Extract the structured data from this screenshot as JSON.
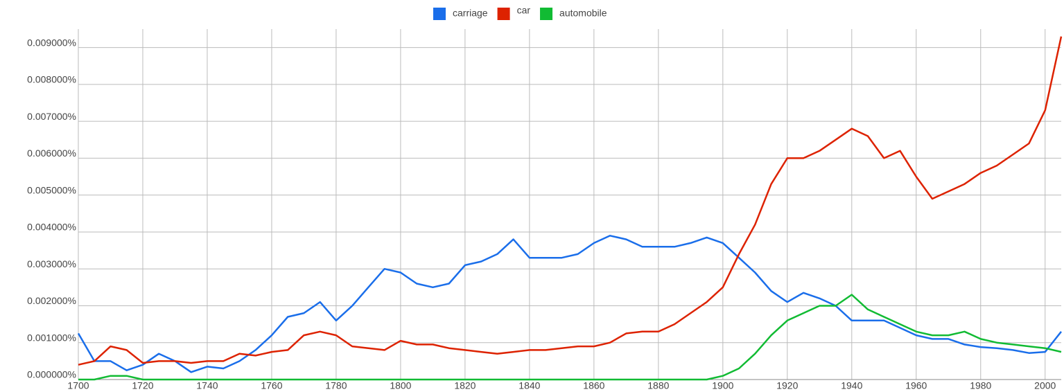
{
  "chart_data": {
    "type": "line",
    "x": [
      1700,
      1705,
      1710,
      1715,
      1720,
      1725,
      1730,
      1735,
      1740,
      1745,
      1750,
      1755,
      1760,
      1765,
      1770,
      1775,
      1780,
      1785,
      1790,
      1795,
      1800,
      1805,
      1810,
      1815,
      1820,
      1825,
      1830,
      1835,
      1840,
      1845,
      1850,
      1855,
      1860,
      1865,
      1870,
      1875,
      1880,
      1885,
      1890,
      1895,
      1900,
      1905,
      1910,
      1915,
      1920,
      1925,
      1930,
      1935,
      1940,
      1945,
      1950,
      1955,
      1960,
      1965,
      1970,
      1975,
      1980,
      1985,
      1990,
      1995,
      2000,
      2005
    ],
    "series": [
      {
        "name": "carriage",
        "color": "#1a6eea",
        "values": [
          0.00125,
          0.0005,
          0.0005,
          0.00025,
          0.0004,
          0.0007,
          0.0005,
          0.0002,
          0.00035,
          0.0003,
          0.0005,
          0.0008,
          0.0012,
          0.0017,
          0.0018,
          0.0021,
          0.0016,
          0.002,
          0.0025,
          0.003,
          0.0029,
          0.0026,
          0.0025,
          0.0026,
          0.0031,
          0.0032,
          0.0034,
          0.0038,
          0.0033,
          0.0033,
          0.0033,
          0.0034,
          0.0037,
          0.0039,
          0.0038,
          0.0036,
          0.0036,
          0.0036,
          0.0037,
          0.00385,
          0.0037,
          0.0033,
          0.0029,
          0.0024,
          0.0021,
          0.00235,
          0.0022,
          0.002,
          0.0016,
          0.0016,
          0.0016,
          0.0014,
          0.0012,
          0.0011,
          0.0011,
          0.00095,
          0.00088,
          0.00085,
          0.0008,
          0.00072,
          0.00075,
          0.0013
        ]
      },
      {
        "name": "car",
        "color": "#dd2200",
        "values": [
          0.0004,
          0.0005,
          0.0009,
          0.0008,
          0.00045,
          0.0005,
          0.0005,
          0.00045,
          0.0005,
          0.0005,
          0.0007,
          0.00065,
          0.00075,
          0.0008,
          0.0012,
          0.0013,
          0.0012,
          0.0009,
          0.00085,
          0.0008,
          0.00105,
          0.00095,
          0.00095,
          0.00085,
          0.0008,
          0.00075,
          0.0007,
          0.00075,
          0.0008,
          0.0008,
          0.00085,
          0.0009,
          0.0009,
          0.001,
          0.00125,
          0.0013,
          0.0013,
          0.0015,
          0.0018,
          0.0021,
          0.0025,
          0.0034,
          0.0042,
          0.0053,
          0.006,
          0.006,
          0.0062,
          0.0065,
          0.0068,
          0.0066,
          0.006,
          0.0062,
          0.0055,
          0.0049,
          0.0051,
          0.0053,
          0.0056,
          0.0058,
          0.0061,
          0.0064,
          0.0073,
          0.0093
        ]
      },
      {
        "name": "automobile",
        "color": "#11bb33",
        "values": [
          0,
          0,
          0.0001,
          0.0001,
          0,
          0,
          0,
          0,
          0,
          0,
          0,
          0,
          0,
          0,
          0,
          0,
          0,
          0,
          0,
          0,
          0,
          0,
          0,
          0,
          0,
          0,
          0,
          0,
          0,
          0,
          0,
          0,
          0,
          0,
          0,
          0,
          0,
          0,
          0,
          0,
          0.0001,
          0.0003,
          0.0007,
          0.0012,
          0.0016,
          0.0018,
          0.002,
          0.002,
          0.0023,
          0.0019,
          0.0017,
          0.0015,
          0.0013,
          0.0012,
          0.0012,
          0.0013,
          0.0011,
          0.001,
          0.00095,
          0.0009,
          0.00085,
          0.00075
        ]
      }
    ],
    "xlim": [
      1700,
      2005
    ],
    "xticks": [
      1700,
      1720,
      1740,
      1760,
      1780,
      1800,
      1820,
      1840,
      1860,
      1880,
      1900,
      1920,
      1940,
      1960,
      1980,
      2000
    ],
    "ylim": [
      0,
      0.0095
    ],
    "yticks": [
      {
        "value": 0,
        "label": "0.000000%"
      },
      {
        "value": 0.001,
        "label": "0.001000%"
      },
      {
        "value": 0.002,
        "label": "0.002000%"
      },
      {
        "value": 0.003,
        "label": "0.003000%"
      },
      {
        "value": 0.004,
        "label": "0.004000%"
      },
      {
        "value": 0.005,
        "label": "0.005000%"
      },
      {
        "value": 0.006,
        "label": "0.006000%"
      },
      {
        "value": 0.007,
        "label": "0.007000%"
      },
      {
        "value": 0.008,
        "label": "0.008000%"
      },
      {
        "value": 0.009,
        "label": "0.009000%"
      }
    ],
    "grid": true,
    "legend": "top"
  }
}
